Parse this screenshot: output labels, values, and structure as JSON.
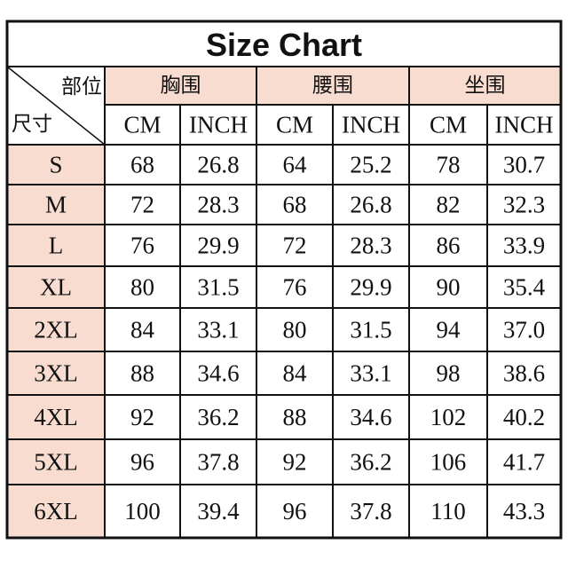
{
  "title": "Size Chart",
  "header": {
    "corner_top": "部位",
    "corner_bottom": "尺寸",
    "groups": [
      "胸围",
      "腰围",
      "坐围"
    ],
    "units": [
      "CM",
      "INCH",
      "CM",
      "INCH",
      "CM",
      "INCH"
    ]
  },
  "table": {
    "rows": [
      [
        "S",
        "68",
        "26.8",
        "64",
        "25.2",
        "78",
        "30.7"
      ],
      [
        "M",
        "72",
        "28.3",
        "68",
        "26.8",
        "82",
        "32.3"
      ],
      [
        "L",
        "76",
        "29.9",
        "72",
        "28.3",
        "86",
        "33.9"
      ],
      [
        "XL",
        "80",
        "31.5",
        "76",
        "29.9",
        "90",
        "35.4"
      ],
      [
        "2XL",
        "84",
        "33.1",
        "80",
        "31.5",
        "94",
        "37.0"
      ],
      [
        "3XL",
        "88",
        "34.6",
        "84",
        "33.1",
        "98",
        "38.6"
      ],
      [
        "4XL",
        "92",
        "36.2",
        "88",
        "34.6",
        "102",
        "40.2"
      ],
      [
        "5XL",
        "96",
        "37.8",
        "92",
        "36.2",
        "106",
        "41.7"
      ],
      [
        "6XL",
        "100",
        "39.4",
        "96",
        "37.8",
        "110",
        "43.3"
      ]
    ]
  }
}
